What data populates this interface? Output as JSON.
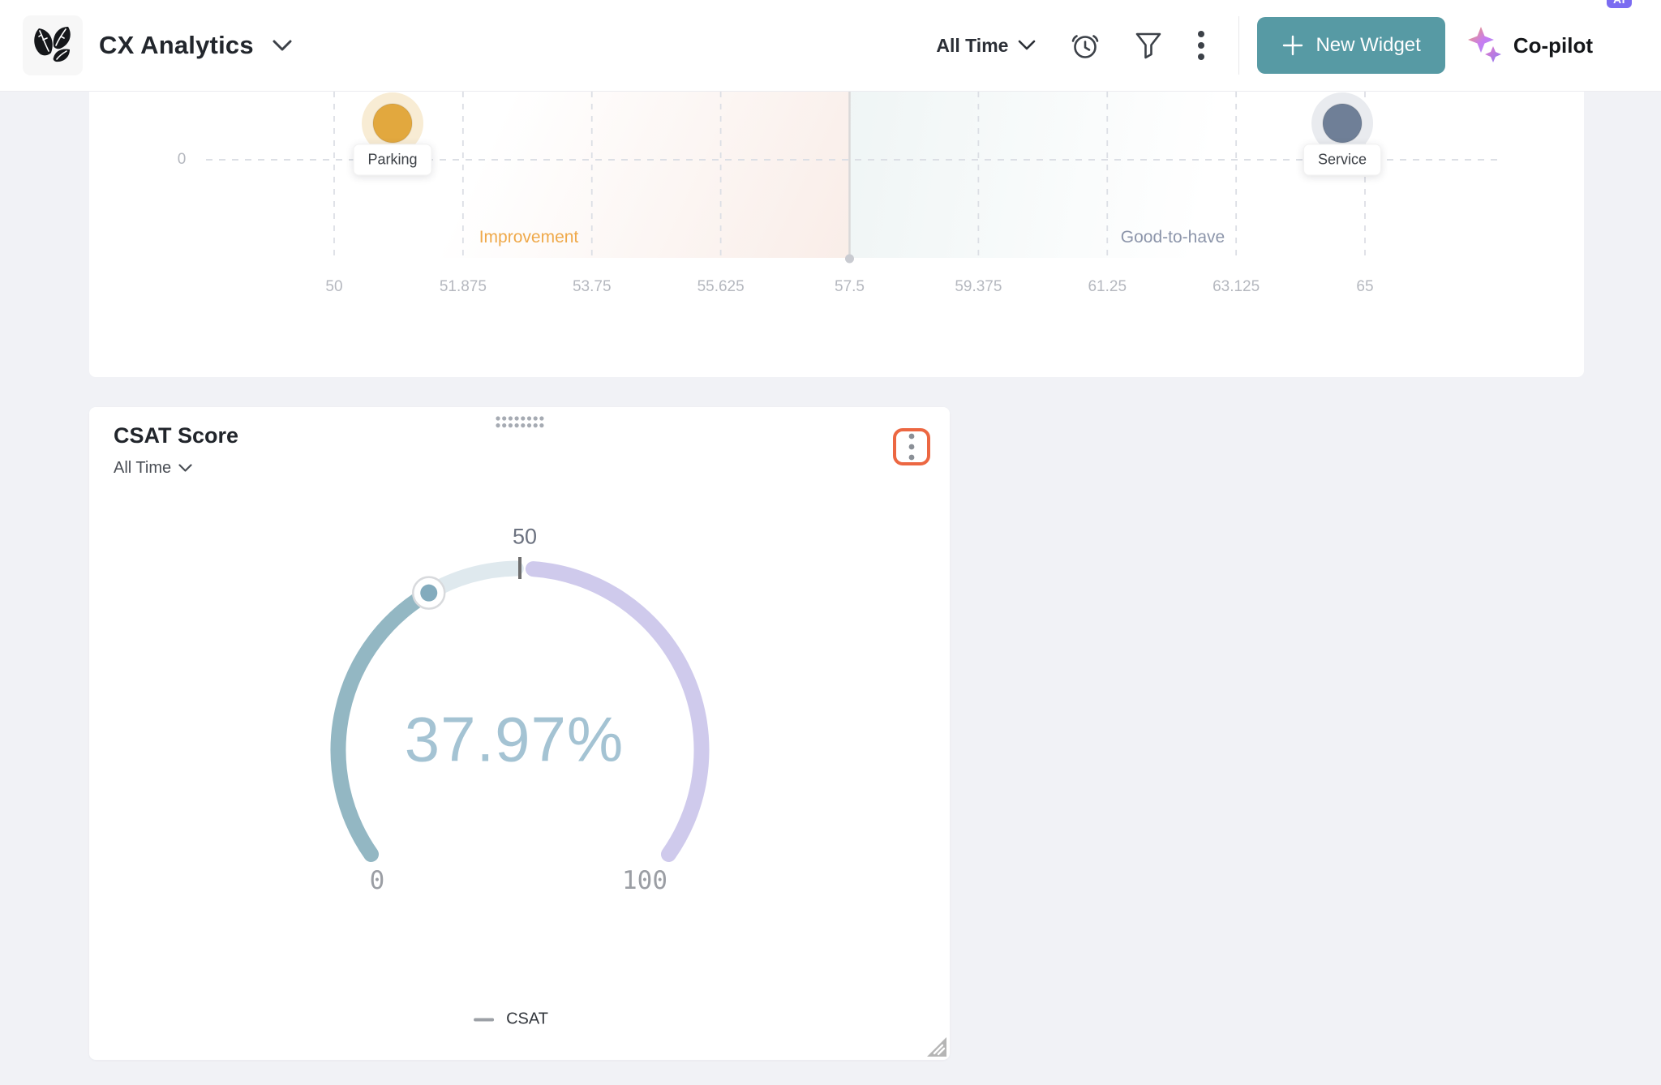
{
  "header": {
    "app_title": "CX Analytics",
    "time_filter_label": "All Time",
    "icons": [
      "history-clock-icon",
      "filter-icon",
      "kebab-menu-icon"
    ],
    "new_widget_button_label": "New Widget",
    "copilot_label": "Co-pilot",
    "ai_badge_label": "AI"
  },
  "colors": {
    "page_background": "#f1f2f6",
    "header_background": "#ffffff",
    "accent_teal_button": "#579aa4",
    "ai_badge_purple": "#7b6cf1",
    "kebab_focus_ring": "#ec6742",
    "grid_dash": "#dcdfe5",
    "reference_line": "#d9d9d9",
    "muted_axis_text": "#b5b8bf",
    "gauge_value_arc": "#93b7c3",
    "gauge_remainder_arc": "#dfe9ee",
    "gauge_upper_arc": "#cfcaec",
    "gauge_value_text": "#a4c3d3",
    "improvement_label": "#efa94a",
    "good_to_have_label": "#8c95aa",
    "parking_point": "#e2a83e",
    "parking_halo": "#f8ecd4",
    "service_point": "#6f7f97",
    "service_halo": "#e9ebef"
  },
  "chart_data": [
    {
      "type": "scatter",
      "note": "quadrant / key-driver chart, top portion cut off by scroll",
      "xlim": [
        50,
        65
      ],
      "x_ticks": [
        50,
        51.875,
        53.75,
        55.625,
        57.5,
        59.375,
        61.25,
        63.125,
        65
      ],
      "y_ticks": [
        0
      ],
      "reference_x": 57.5,
      "grid": "dashed",
      "points": [
        {
          "label": "Parking",
          "x": 50.85,
          "y": 0,
          "y_note": "plotted just above the 0 gridline",
          "color": "#e2a83e",
          "halo": "#f8ecd4"
        },
        {
          "label": "Service",
          "x": 64.67,
          "y": 0,
          "y_note": "plotted just above the 0 gridline",
          "color": "#6f7f97",
          "halo": "#e9ebef"
        }
      ],
      "quadrant_labels": [
        {
          "text": "Improvement",
          "color": "#efa94a"
        },
        {
          "text": "Good-to-have",
          "color": "#8c95aa"
        }
      ]
    },
    {
      "type": "gauge",
      "title": "CSAT Score",
      "time_filter": "All Time",
      "value": 37.97,
      "value_display": "37.97%",
      "min": 0,
      "max": 100,
      "top_tick": 50,
      "legend_label": "CSAT",
      "legend_position": "bottom-center"
    }
  ]
}
